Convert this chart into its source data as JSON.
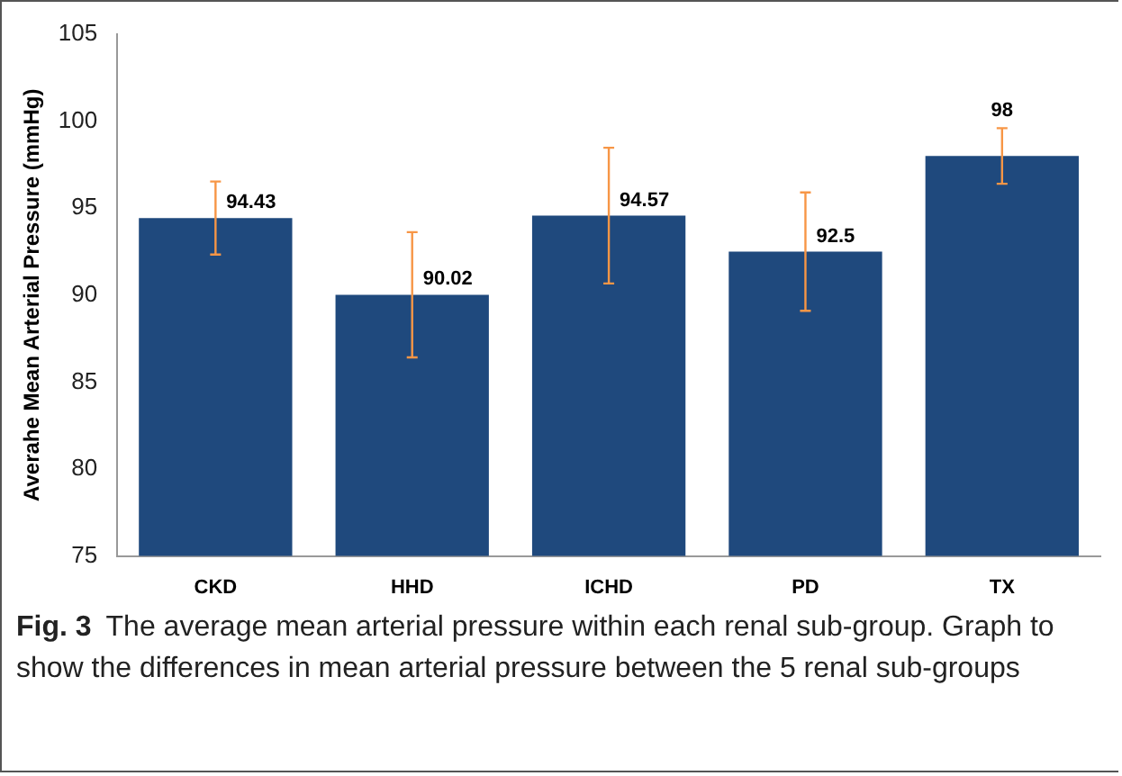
{
  "chart_data": {
    "type": "bar",
    "ylabel": "Averahe Mean Arterial Pressure (mmHg)",
    "categories": [
      "CKD",
      "HHD",
      "ICHD",
      "PD",
      "TX"
    ],
    "values": [
      94.43,
      90.02,
      94.57,
      92.5,
      98
    ],
    "errors": [
      2.1,
      3.6,
      3.9,
      3.4,
      1.6
    ],
    "color": "#1f497d",
    "ylim": [
      75,
      105
    ],
    "yticks": [
      75,
      80,
      85,
      90,
      95,
      100,
      105
    ],
    "grid": false,
    "legend": false,
    "data_labels": true,
    "annotations": [
      "Fig. 3",
      "The average mean arterial pressure within each renal sub-group. Graph to show the differences in mean arterial pressure between the 5 renal sub-groups"
    ]
  }
}
